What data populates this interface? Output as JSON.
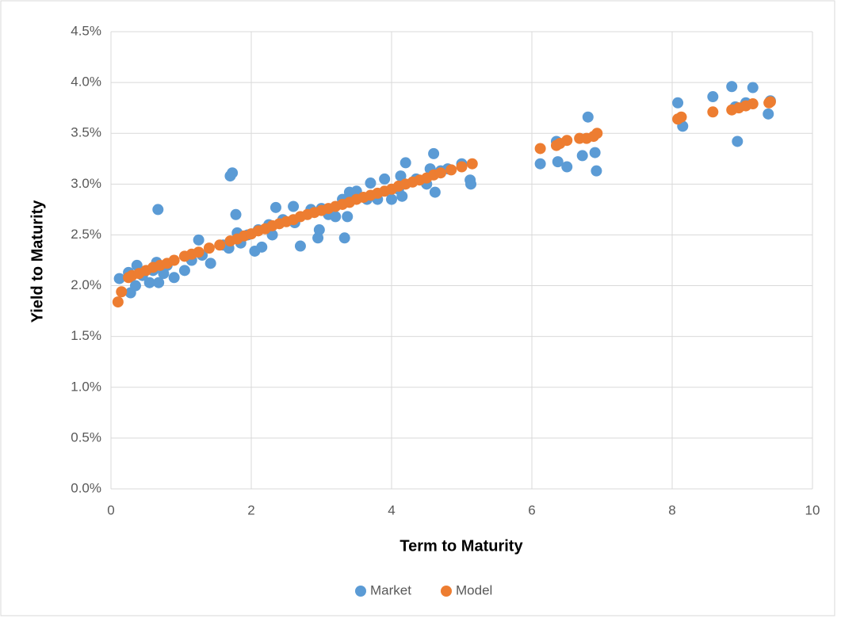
{
  "chart_data": {
    "type": "scatter",
    "x_label": "Term to Maturity",
    "y_label": "Yield to Maturity",
    "xlim": [
      0,
      10
    ],
    "xticks": [
      0,
      2,
      4,
      6,
      8,
      10
    ],
    "ylim": [
      0,
      4.5
    ],
    "yticks": [
      {
        "value": 0,
        "label": "0.0%"
      },
      {
        "value": 0.5,
        "label": "0.5%"
      },
      {
        "value": 1,
        "label": "1.0%"
      },
      {
        "value": 1.5,
        "label": "1.5%"
      },
      {
        "value": 2,
        "label": "2.0%"
      },
      {
        "value": 2.5,
        "label": "2.5%"
      },
      {
        "value": 3,
        "label": "3.0%"
      },
      {
        "value": 3.5,
        "label": "3.5%"
      },
      {
        "value": 4,
        "label": "4.0%"
      },
      {
        "value": 4.5,
        "label": "4.5%"
      }
    ],
    "grid": true,
    "legend": "bottom",
    "series": [
      {
        "name": "Market",
        "color": "#5b9bd5",
        "x": [
          0.12,
          0.25,
          0.28,
          0.35,
          0.37,
          0.45,
          0.55,
          0.6,
          0.65,
          0.67,
          0.68,
          0.75,
          0.8,
          0.9,
          1.05,
          1.15,
          1.25,
          1.3,
          1.42,
          1.6,
          1.68,
          1.7,
          1.73,
          1.78,
          1.8,
          1.85,
          1.95,
          2.05,
          2.1,
          2.15,
          2.25,
          2.3,
          2.35,
          2.45,
          2.6,
          2.62,
          2.7,
          2.85,
          2.95,
          2.97,
          3.0,
          3.1,
          3.2,
          3.3,
          3.33,
          3.37,
          3.4,
          3.5,
          3.65,
          3.7,
          3.8,
          3.9,
          4.0,
          4.1,
          4.13,
          4.15,
          4.2,
          4.35,
          4.5,
          4.55,
          4.6,
          4.62,
          4.7,
          4.8,
          5.0,
          5.12,
          5.13,
          6.12,
          6.35,
          6.37,
          6.5,
          6.72,
          6.8,
          6.9,
          6.92,
          8.08,
          8.15,
          8.58,
          8.85,
          8.9,
          8.93,
          9.05,
          9.15,
          9.37,
          9.4
        ],
        "values": [
          2.07,
          2.13,
          1.93,
          2.0,
          2.2,
          2.1,
          2.03,
          2.15,
          2.23,
          2.75,
          2.03,
          2.12,
          2.2,
          2.08,
          2.15,
          2.25,
          2.45,
          2.3,
          2.22,
          2.4,
          2.37,
          3.08,
          3.11,
          2.7,
          2.52,
          2.42,
          2.5,
          2.34,
          2.55,
          2.38,
          2.6,
          2.5,
          2.77,
          2.65,
          2.78,
          2.62,
          2.39,
          2.75,
          2.47,
          2.55,
          2.76,
          2.7,
          2.68,
          2.85,
          2.47,
          2.68,
          2.92,
          2.93,
          2.85,
          3.01,
          2.85,
          3.05,
          2.85,
          2.95,
          3.08,
          2.88,
          3.21,
          3.05,
          3.0,
          3.15,
          3.3,
          2.92,
          3.13,
          3.15,
          3.2,
          3.04,
          3.0,
          3.2,
          3.42,
          3.22,
          3.17,
          3.28,
          3.66,
          3.31,
          3.13,
          3.8,
          3.57,
          3.86,
          3.96,
          3.76,
          3.42,
          3.8,
          3.95,
          3.69,
          3.82
        ]
      },
      {
        "name": "Model",
        "color": "#ed7d31",
        "x": [
          0.1,
          0.15,
          0.25,
          0.3,
          0.4,
          0.5,
          0.6,
          0.7,
          0.8,
          0.9,
          1.05,
          1.15,
          1.25,
          1.4,
          1.55,
          1.7,
          1.8,
          1.9,
          2.0,
          2.1,
          2.2,
          2.3,
          2.4,
          2.5,
          2.6,
          2.7,
          2.8,
          2.9,
          3.0,
          3.1,
          3.2,
          3.3,
          3.4,
          3.5,
          3.6,
          3.7,
          3.8,
          3.9,
          4.0,
          4.1,
          4.2,
          4.3,
          4.4,
          4.5,
          4.6,
          4.7,
          4.85,
          5.0,
          5.15,
          6.12,
          6.35,
          6.4,
          6.5,
          6.68,
          6.78,
          6.88,
          6.93,
          8.08,
          8.13,
          8.58,
          8.85,
          8.95,
          9.05,
          9.15,
          9.38,
          9.4
        ],
        "values": [
          1.84,
          1.94,
          2.08,
          2.1,
          2.12,
          2.15,
          2.18,
          2.2,
          2.22,
          2.25,
          2.29,
          2.31,
          2.33,
          2.37,
          2.4,
          2.44,
          2.46,
          2.49,
          2.51,
          2.54,
          2.56,
          2.59,
          2.61,
          2.63,
          2.65,
          2.68,
          2.7,
          2.72,
          2.74,
          2.76,
          2.78,
          2.8,
          2.82,
          2.85,
          2.87,
          2.89,
          2.91,
          2.93,
          2.95,
          2.98,
          3.0,
          3.02,
          3.04,
          3.06,
          3.09,
          3.11,
          3.14,
          3.17,
          3.2,
          3.35,
          3.38,
          3.4,
          3.43,
          3.45,
          3.45,
          3.47,
          3.5,
          3.64,
          3.66,
          3.71,
          3.73,
          3.75,
          3.77,
          3.79,
          3.8,
          3.81
        ]
      }
    ]
  }
}
